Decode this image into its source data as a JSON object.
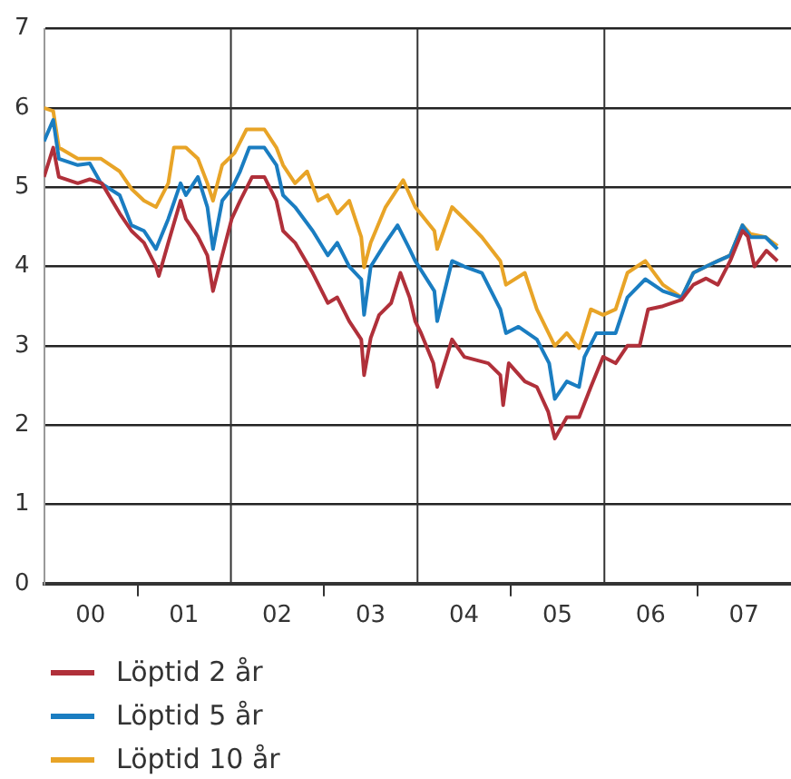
{
  "chart_data": {
    "type": "line",
    "xlim": [
      "2000-01-01",
      "2008-01-01"
    ],
    "xticks": [
      {
        "value": "2000-07-01",
        "label": "00"
      },
      {
        "value": "2001-01-01",
        "label": null
      },
      {
        "value": "2001-07-01",
        "label": "01"
      },
      {
        "value": "2002-07-01",
        "label": "02"
      },
      {
        "value": "2003-01-01",
        "label": null
      },
      {
        "value": "2003-07-01",
        "label": "03"
      },
      {
        "value": "2004-07-01",
        "label": "04"
      },
      {
        "value": "2005-01-01",
        "label": null
      },
      {
        "value": "2005-07-01",
        "label": "05"
      },
      {
        "value": "2006-07-01",
        "label": "06"
      },
      {
        "value": "2007-01-01",
        "label": null
      },
      {
        "value": "2007-07-01",
        "label": "07"
      }
    ],
    "ylim": [
      0,
      7
    ],
    "yticks": [
      0,
      1,
      2,
      3,
      4,
      5,
      6,
      7
    ],
    "grid": "y",
    "legend": "bottom",
    "marker": "none",
    "line_style": "solid",
    "ref_lines": [
      {
        "axis": "x",
        "value": "2002-01-01",
        "color": "#333333"
      },
      {
        "axis": "x",
        "value": "2004-01-01",
        "color": "#333333"
      },
      {
        "axis": "x",
        "value": "2006-01-01",
        "color": "#333333"
      }
    ],
    "series": [
      {
        "name": "Löptid 2 år",
        "color": "#b0303a",
        "x": [
          "2000-01-01",
          "2000-02-06",
          "2000-02-28",
          "2000-05-12",
          "2000-06-28",
          "2000-08-14",
          "2000-10-23",
          "2000-12-08",
          "2001-01-26",
          "2001-03-14",
          "2001-03-25",
          "2001-05-01",
          "2001-06-18",
          "2001-07-09",
          "2001-08-25",
          "2001-10-01",
          "2001-10-23",
          "2001-11-28",
          "2002-01-04",
          "2002-02-06",
          "2002-03-25",
          "2002-05-12",
          "2002-06-28",
          "2002-07-24",
          "2002-09-09",
          "2002-11-17",
          "2003-01-15",
          "2003-02-21",
          "2003-04-09",
          "2003-05-26",
          "2003-06-06",
          "2003-07-02",
          "2003-08-04",
          "2003-09-20",
          "2003-10-26",
          "2003-12-01",
          "2003-12-23",
          "2004-01-15",
          "2004-03-03",
          "2004-03-18",
          "2004-05-15",
          "2004-07-02",
          "2004-10-04",
          "2004-11-20",
          "2004-12-01",
          "2004-12-23",
          "2005-02-24",
          "2005-04-12",
          "2005-05-26",
          "2005-06-21",
          "2005-08-07",
          "2005-09-24",
          "2005-11-09",
          "2005-12-27",
          "2006-02-14",
          "2006-04-01",
          "2006-05-19",
          "2006-06-21",
          "2006-08-18",
          "2006-10-30",
          "2006-12-15",
          "2007-02-03",
          "2007-03-21",
          "2007-05-08",
          "2007-06-25",
          "2007-07-16",
          "2007-08-11",
          "2007-09-27",
          "2007-11-09"
        ],
        "values": [
          5.13,
          5.5,
          5.13,
          5.05,
          5.1,
          5.05,
          4.67,
          4.45,
          4.3,
          4.0,
          3.88,
          4.3,
          4.83,
          4.6,
          4.38,
          4.14,
          3.69,
          4.14,
          4.6,
          4.83,
          5.13,
          5.13,
          4.83,
          4.45,
          4.3,
          3.92,
          3.54,
          3.61,
          3.31,
          3.08,
          2.63,
          3.1,
          3.39,
          3.54,
          3.92,
          3.61,
          3.31,
          3.16,
          2.78,
          2.48,
          3.08,
          2.86,
          2.78,
          2.63,
          2.25,
          2.78,
          2.55,
          2.48,
          2.17,
          1.83,
          2.1,
          2.1,
          2.48,
          2.86,
          2.78,
          3.0,
          3.0,
          3.46,
          3.5,
          3.58,
          3.77,
          3.85,
          3.77,
          4.07,
          4.45,
          4.38,
          4.0,
          4.2,
          4.07
        ]
      },
      {
        "name": "Löptid 5 år",
        "color": "#1a7dc1",
        "x": [
          "2000-01-01",
          "2000-02-06",
          "2000-02-28",
          "2000-05-12",
          "2000-06-28",
          "2000-08-11",
          "2000-10-23",
          "2000-12-08",
          "2001-01-26",
          "2001-03-14",
          "2001-05-01",
          "2001-06-18",
          "2001-07-09",
          "2001-08-25",
          "2001-10-01",
          "2001-10-23",
          "2001-11-28",
          "2002-01-04",
          "2002-02-06",
          "2002-03-14",
          "2002-05-12",
          "2002-06-28",
          "2002-07-24",
          "2002-09-09",
          "2002-11-17",
          "2003-01-15",
          "2003-02-21",
          "2003-04-09",
          "2003-05-26",
          "2003-06-06",
          "2003-07-02",
          "2003-08-29",
          "2003-10-15",
          "2003-12-01",
          "2003-12-23",
          "2004-03-07",
          "2004-03-18",
          "2004-05-15",
          "2004-07-02",
          "2004-09-09",
          "2004-11-20",
          "2004-12-12",
          "2005-01-30",
          "2005-04-12",
          "2005-05-30",
          "2005-06-21",
          "2005-08-07",
          "2005-09-24",
          "2005-10-15",
          "2005-12-01",
          "2006-02-14",
          "2006-04-01",
          "2006-06-10",
          "2006-08-18",
          "2006-10-30",
          "2006-12-15",
          "2007-02-03",
          "2007-03-21",
          "2007-05-08",
          "2007-06-25",
          "2007-07-27",
          "2007-09-24",
          "2007-11-09"
        ],
        "values": [
          5.58,
          5.85,
          5.36,
          5.28,
          5.3,
          5.05,
          4.9,
          4.52,
          4.45,
          4.22,
          4.6,
          5.05,
          4.9,
          5.13,
          4.75,
          4.22,
          4.83,
          4.98,
          5.2,
          5.5,
          5.5,
          5.28,
          4.9,
          4.75,
          4.45,
          4.14,
          4.3,
          4.0,
          3.84,
          3.39,
          4.0,
          4.3,
          4.52,
          4.22,
          4.07,
          3.69,
          3.31,
          4.07,
          4.0,
          3.92,
          3.46,
          3.16,
          3.24,
          3.08,
          2.78,
          2.33,
          2.55,
          2.48,
          2.86,
          3.16,
          3.16,
          3.61,
          3.84,
          3.69,
          3.61,
          3.92,
          4.0,
          4.07,
          4.14,
          4.52,
          4.37,
          4.37,
          4.22
        ]
      },
      {
        "name": "Löptid 10 år",
        "color": "#e8a427",
        "x": [
          "2000-01-01",
          "2000-02-06",
          "2000-02-28",
          "2000-05-12",
          "2000-06-28",
          "2000-08-11",
          "2000-10-23",
          "2000-12-08",
          "2001-01-26",
          "2001-03-14",
          "2001-05-01",
          "2001-05-23",
          "2001-07-09",
          "2001-08-25",
          "2001-10-01",
          "2001-10-23",
          "2001-11-28",
          "2002-01-15",
          "2002-03-03",
          "2002-05-12",
          "2002-06-28",
          "2002-07-24",
          "2002-09-09",
          "2002-10-26",
          "2002-12-08",
          "2003-01-15",
          "2003-02-21",
          "2003-04-09",
          "2003-05-26",
          "2003-06-06",
          "2003-07-02",
          "2003-08-29",
          "2003-10-15",
          "2003-11-06",
          "2003-12-23",
          "2004-03-07",
          "2004-03-18",
          "2004-05-15",
          "2004-07-02",
          "2004-09-09",
          "2004-11-20",
          "2004-12-12",
          "2005-02-24",
          "2005-04-12",
          "2005-06-21",
          "2005-08-07",
          "2005-09-24",
          "2005-11-09",
          "2005-12-27",
          "2006-02-14",
          "2006-04-01",
          "2006-06-10",
          "2006-08-18",
          "2006-10-30",
          "2006-12-15",
          "2007-02-03",
          "2007-03-21",
          "2007-05-08",
          "2007-06-25",
          "2007-07-27",
          "2007-09-24",
          "2007-11-09"
        ],
        "values": [
          6.0,
          5.96,
          5.5,
          5.36,
          5.36,
          5.36,
          5.2,
          4.98,
          4.83,
          4.75,
          5.05,
          5.5,
          5.5,
          5.36,
          5.05,
          4.83,
          5.28,
          5.43,
          5.73,
          5.73,
          5.5,
          5.28,
          5.05,
          5.2,
          4.83,
          4.9,
          4.67,
          4.83,
          4.37,
          3.99,
          4.3,
          4.75,
          4.98,
          5.09,
          4.75,
          4.45,
          4.22,
          4.75,
          4.6,
          4.37,
          4.07,
          3.77,
          3.92,
          3.46,
          3.0,
          3.16,
          2.97,
          3.46,
          3.39,
          3.46,
          3.92,
          4.07,
          3.77,
          3.61,
          3.92,
          4.0,
          4.07,
          4.14,
          4.52,
          4.41,
          4.37,
          4.26
        ]
      }
    ]
  }
}
